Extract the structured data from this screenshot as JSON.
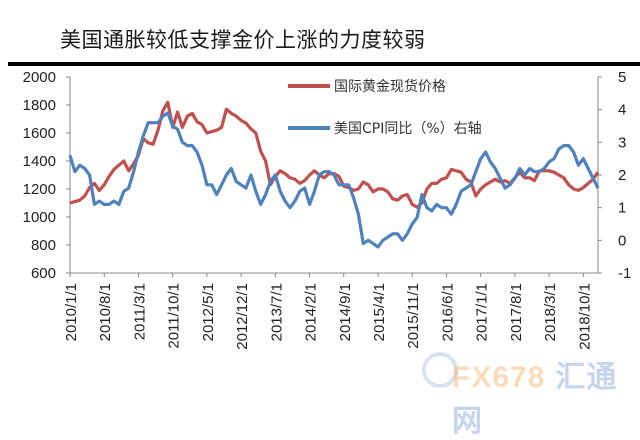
{
  "title": "美国通胀较低支撑金价上涨的力度较弱",
  "watermark": {
    "brand": "FX678",
    "cn": "汇通网"
  },
  "colors": {
    "gold": "#c0504d",
    "cpi": "#4f81bd",
    "axis": "#888888"
  },
  "chart_data": {
    "type": "line",
    "title": "美国通胀较低支撑金价上涨的力度较弱",
    "xlabel": "",
    "ylabel": "",
    "y_left": {
      "range": [
        600,
        2000
      ],
      "ticks": [
        600,
        800,
        1000,
        1200,
        1400,
        1600,
        1800,
        2000
      ]
    },
    "y_right": {
      "range": [
        -1,
        5
      ],
      "ticks": [
        -1,
        0,
        1,
        2,
        3,
        4,
        5
      ]
    },
    "x_tick_labels": [
      "2010/1/1",
      "2010/8/1",
      "2011/3/1",
      "2011/10/1",
      "2012/5/1",
      "2012/12/1",
      "2013/7/1",
      "2014/2/1",
      "2014/9/1",
      "2015/4/1",
      "2015/11/1",
      "2016/6/1",
      "2017/1/1",
      "2017/8/1",
      "2018/3/1",
      "2018/10/1"
    ],
    "x_start": "2010/1",
    "x_frequency": "monthly",
    "grid": false,
    "legend_position": "top-center-right",
    "series": [
      {
        "name": "国际黄金现货价格",
        "axis": "left",
        "color": "#c0504d",
        "values": [
          1100,
          1110,
          1120,
          1150,
          1210,
          1240,
          1190,
          1230,
          1290,
          1340,
          1370,
          1400,
          1330,
          1380,
          1440,
          1560,
          1530,
          1520,
          1620,
          1760,
          1820,
          1640,
          1750,
          1640,
          1720,
          1740,
          1680,
          1660,
          1600,
          1610,
          1620,
          1640,
          1770,
          1740,
          1720,
          1690,
          1670,
          1630,
          1600,
          1470,
          1400,
          1230,
          1290,
          1330,
          1310,
          1280,
          1270,
          1240,
          1260,
          1300,
          1330,
          1300,
          1280,
          1310,
          1310,
          1290,
          1220,
          1210,
          1190,
          1200,
          1250,
          1230,
          1180,
          1200,
          1200,
          1180,
          1130,
          1120,
          1150,
          1160,
          1090,
          1070,
          1100,
          1200,
          1240,
          1240,
          1270,
          1280,
          1340,
          1330,
          1320,
          1270,
          1250,
          1150,
          1200,
          1230,
          1250,
          1270,
          1250,
          1260,
          1240,
          1280,
          1320,
          1280,
          1280,
          1260,
          1330,
          1330,
          1330,
          1320,
          1300,
          1280,
          1230,
          1200,
          1190,
          1210,
          1240,
          1270,
          1320
        ]
      },
      {
        "name": "美国CPI同比（%）右轴",
        "axis": "right",
        "color": "#4f81bd",
        "values": [
          2.6,
          2.1,
          2.3,
          2.2,
          2.0,
          1.1,
          1.2,
          1.1,
          1.1,
          1.2,
          1.1,
          1.5,
          1.6,
          2.1,
          2.7,
          3.2,
          3.6,
          3.6,
          3.6,
          3.8,
          3.9,
          3.5,
          3.4,
          3.0,
          2.9,
          2.9,
          2.7,
          2.3,
          1.7,
          1.7,
          1.4,
          1.7,
          2.0,
          2.2,
          1.8,
          1.7,
          1.6,
          2.0,
          1.5,
          1.1,
          1.4,
          1.8,
          2.0,
          1.5,
          1.2,
          1.0,
          1.2,
          1.5,
          1.6,
          1.1,
          1.5,
          2.0,
          2.1,
          2.1,
          2.0,
          1.7,
          1.7,
          1.7,
          1.3,
          0.8,
          -0.1,
          0.0,
          -0.1,
          -0.2,
          0.0,
          0.1,
          0.2,
          0.2,
          0.0,
          0.2,
          0.5,
          0.7,
          1.4,
          1.0,
          0.9,
          1.1,
          1.0,
          1.0,
          0.8,
          1.1,
          1.5,
          1.6,
          1.7,
          2.1,
          2.5,
          2.7,
          2.4,
          2.2,
          1.9,
          1.6,
          1.7,
          1.9,
          2.2,
          2.0,
          2.2,
          2.1,
          2.1,
          2.2,
          2.4,
          2.5,
          2.8,
          2.9,
          2.9,
          2.7,
          2.3,
          2.5,
          2.2,
          1.9,
          1.6
        ]
      }
    ]
  }
}
